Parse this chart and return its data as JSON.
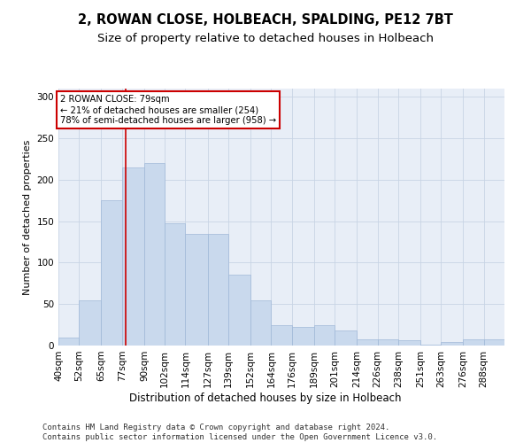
{
  "title": "2, ROWAN CLOSE, HOLBEACH, SPALDING, PE12 7BT",
  "subtitle": "Size of property relative to detached houses in Holbeach",
  "xlabel": "Distribution of detached houses by size in Holbeach",
  "ylabel": "Number of detached properties",
  "bar_labels": [
    "40sqm",
    "52sqm",
    "65sqm",
    "77sqm",
    "90sqm",
    "102sqm",
    "114sqm",
    "127sqm",
    "139sqm",
    "152sqm",
    "164sqm",
    "176sqm",
    "189sqm",
    "201sqm",
    "214sqm",
    "226sqm",
    "238sqm",
    "251sqm",
    "263sqm",
    "276sqm",
    "288sqm"
  ],
  "bar_values": [
    10,
    55,
    175,
    215,
    220,
    147,
    135,
    135,
    85,
    55,
    25,
    22,
    25,
    18,
    8,
    7,
    6,
    1,
    4,
    8,
    8
  ],
  "bar_color": "#c9d9ed",
  "bar_edgecolor": "#a0b8d8",
  "property_line_x": 79,
  "bin_edges": [
    40,
    52,
    65,
    77,
    90,
    102,
    114,
    127,
    139,
    152,
    164,
    176,
    189,
    201,
    214,
    226,
    238,
    251,
    263,
    276,
    288,
    300
  ],
  "annotation_text": "2 ROWAN CLOSE: 79sqm\n← 21% of detached houses are smaller (254)\n78% of semi-detached houses are larger (958) →",
  "annotation_box_color": "#ffffff",
  "annotation_box_edgecolor": "#cc0000",
  "line_color": "#cc0000",
  "grid_color": "#c8d4e4",
  "bg_color": "#e8eef7",
  "footer_text": "Contains HM Land Registry data © Crown copyright and database right 2024.\nContains public sector information licensed under the Open Government Licence v3.0.",
  "ylim": [
    0,
    310
  ],
  "yticks": [
    0,
    50,
    100,
    150,
    200,
    250,
    300
  ],
  "title_fontsize": 10.5,
  "subtitle_fontsize": 9.5,
  "xlabel_fontsize": 8.5,
  "ylabel_fontsize": 8,
  "tick_fontsize": 7.5,
  "footer_fontsize": 6.5
}
